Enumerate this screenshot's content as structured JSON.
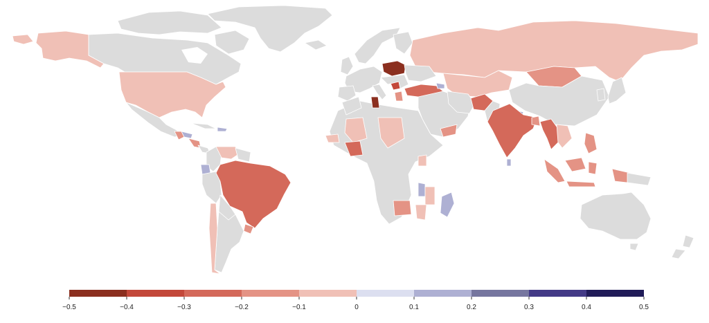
{
  "map": {
    "type": "choropleth",
    "colors": {
      "no_data": "#dcdcdc",
      "bins": [
        "#8b2f1f",
        "#c3483a",
        "#d4695a",
        "#e49385",
        "#f0c0b6",
        "#dcdff0",
        "#aeb0d3",
        "#76769f",
        "#433a86",
        "#201b58"
      ]
    },
    "legend": {
      "ticks": [
        "−0.5",
        "−0.4",
        "−0.3",
        "−0.2",
        "−0.1",
        "0",
        "0.1",
        "0.2",
        "0.3",
        "0.4",
        "0.5"
      ]
    }
  }
}
